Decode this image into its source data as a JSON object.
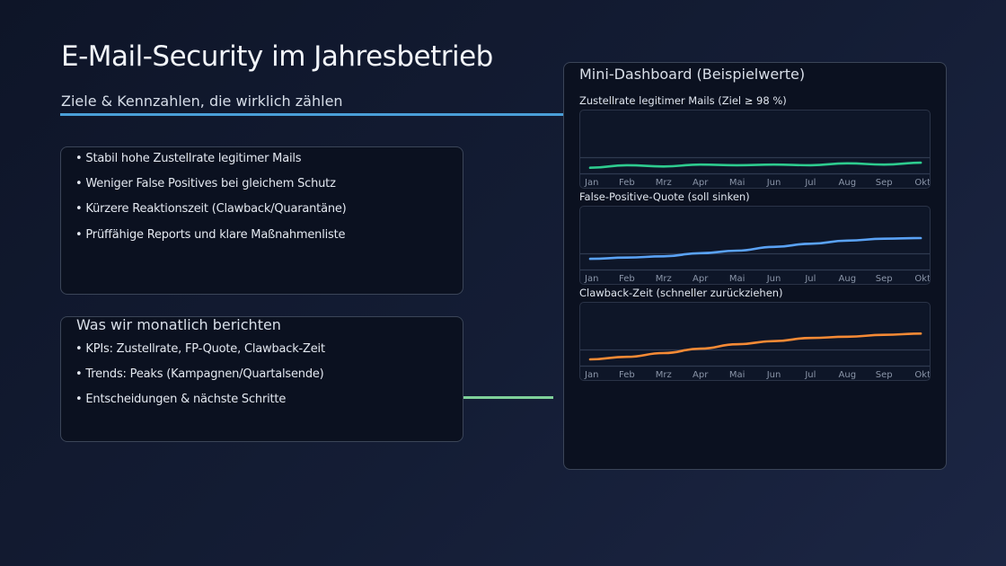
{
  "slide": {
    "title": "E-Mail-Security im Jahresbetrieb",
    "subtitle": "Ziele & Kennzahlen, die wirklich zählen",
    "accent_blue": "#4a9fd8",
    "accent_green": "#7fd19a"
  },
  "goals": {
    "items": [
      "• Stabil hohe Zustellrate legitimer Mails",
      "• Weniger False Positives bei gleichem Schutz",
      "• Kürzere Reaktionszeit (Clawback/Quarantäne)",
      "• Prüffähige Reports und klare Maßnahmenliste"
    ]
  },
  "report": {
    "title": "Was wir monatlich berichten",
    "items": [
      "• KPIs: Zustellrate, FP-Quote, Clawback-Zeit",
      "• Trends: Peaks (Kampagnen/Quartalsende)",
      "• Entscheidungen & nächste Schritte"
    ]
  },
  "dashboard": {
    "title": "Mini-Dashboard (Beispielwerte)"
  },
  "chart_data": [
    {
      "type": "line",
      "title": "Zustellrate legitimer Mails (Ziel ≥ 98 %)",
      "categories": [
        "Jan",
        "Feb",
        "Mrz",
        "Apr",
        "Mai",
        "Jun",
        "Jul",
        "Aug",
        "Sep",
        "Okt"
      ],
      "values": [
        9,
        13,
        11,
        14,
        13,
        14,
        13,
        16,
        14,
        17
      ],
      "ylim": [
        0,
        100
      ],
      "color": "#2ecc8f",
      "grid": true
    },
    {
      "type": "line",
      "title": "False-Positive-Quote (soll sinken)",
      "categories": [
        "Jan",
        "Feb",
        "Mrz",
        "Apr",
        "Mai",
        "Jun",
        "Jul",
        "Aug",
        "Sep",
        "Okt"
      ],
      "values": [
        17,
        19,
        21,
        26,
        30,
        36,
        41,
        46,
        49,
        50
      ],
      "ylim": [
        0,
        100
      ],
      "color": "#5aa2f5",
      "grid": true
    },
    {
      "type": "line",
      "title": "Clawback-Zeit (schneller zurückziehen)",
      "categories": [
        "Jan",
        "Feb",
        "Mrz",
        "Apr",
        "Mai",
        "Jun",
        "Jul",
        "Aug",
        "Sep",
        "Okt"
      ],
      "values": [
        10,
        14,
        20,
        27,
        34,
        39,
        44,
        46,
        49,
        51
      ],
      "ylim": [
        0,
        100
      ],
      "color": "#f68a35",
      "grid": true
    }
  ]
}
